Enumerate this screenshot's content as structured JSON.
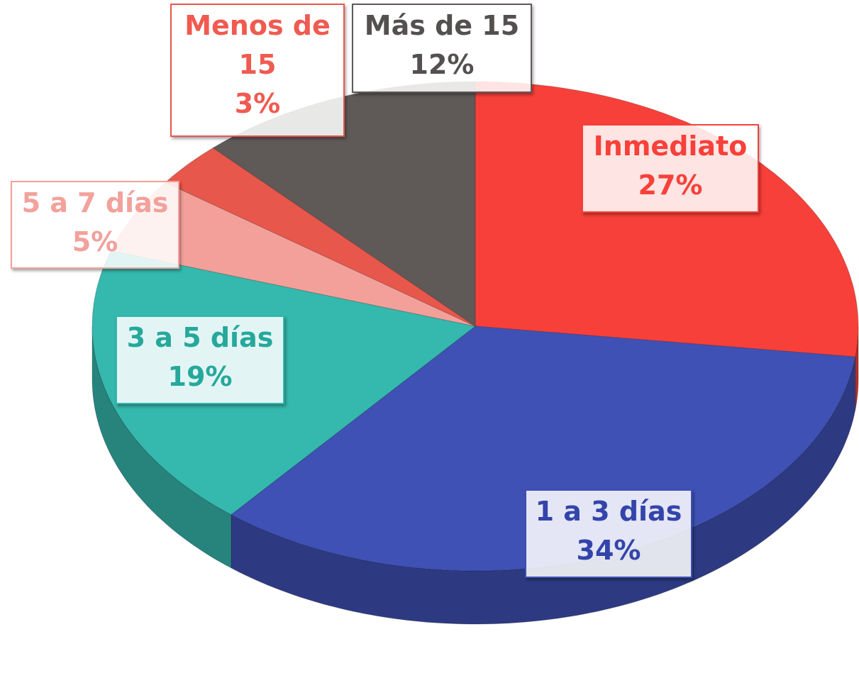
{
  "chart_data": {
    "type": "pie3d",
    "categories": [
      "Inmediato",
      "1 a 3 días",
      "3 a 5 días",
      "5 a 7 días",
      "Menos de 15",
      "Más de 15"
    ],
    "values": [
      27,
      34,
      19,
      5,
      3,
      12
    ],
    "value_labels": [
      "27%",
      "34%",
      "19%",
      "5%",
      "3%",
      "12%"
    ],
    "colors": [
      "#f8403a",
      "#3f51b5",
      "#35b8ad",
      "#f4a09a",
      "#e8574c",
      "#5f5a58"
    ]
  }
}
